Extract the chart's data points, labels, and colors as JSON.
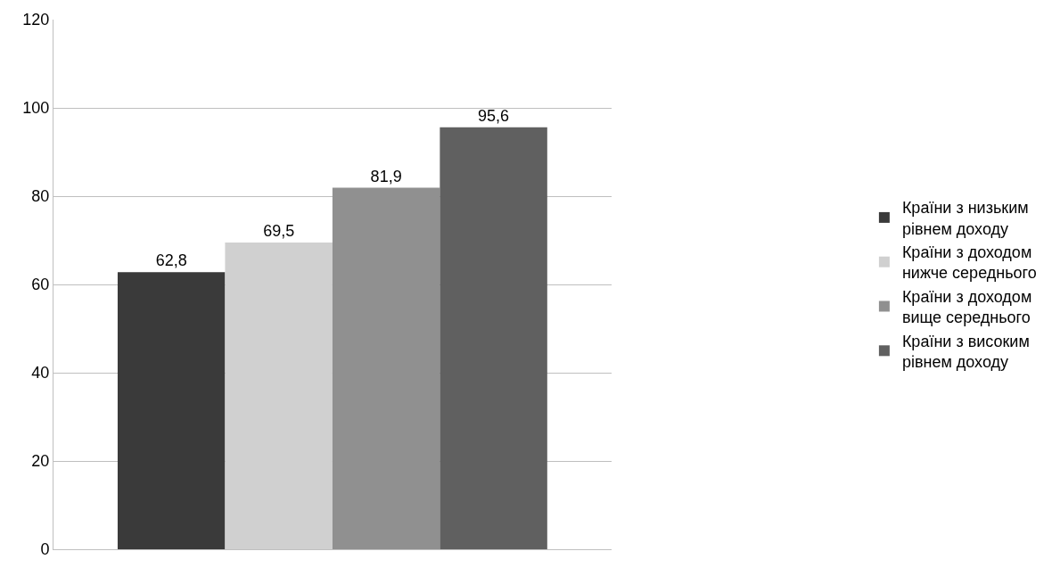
{
  "chart_data": {
    "type": "bar",
    "categories": [
      null
    ],
    "series": [
      {
        "name": "Країни з низьким рівнем доходу",
        "color": "#3a3a3a",
        "values": [
          62.8
        ],
        "value_labels": [
          "62,8"
        ]
      },
      {
        "name": "Країни з доходом нижче середнього",
        "color": "#d0d0d0",
        "values": [
          69.5
        ],
        "value_labels": [
          "69,5"
        ]
      },
      {
        "name": "Країни з доходом вище середнього",
        "color": "#909090",
        "values": [
          81.9
        ],
        "value_labels": [
          "81,9"
        ]
      },
      {
        "name": "Країни з високим рівнем доходу",
        "color": "#606060",
        "values": [
          95.6
        ],
        "value_labels": [
          "95,6"
        ]
      }
    ],
    "ylim": [
      0,
      120
    ],
    "yticks": [
      0,
      20,
      40,
      60,
      80,
      100,
      120
    ],
    "grid": "y",
    "legend": "right"
  }
}
